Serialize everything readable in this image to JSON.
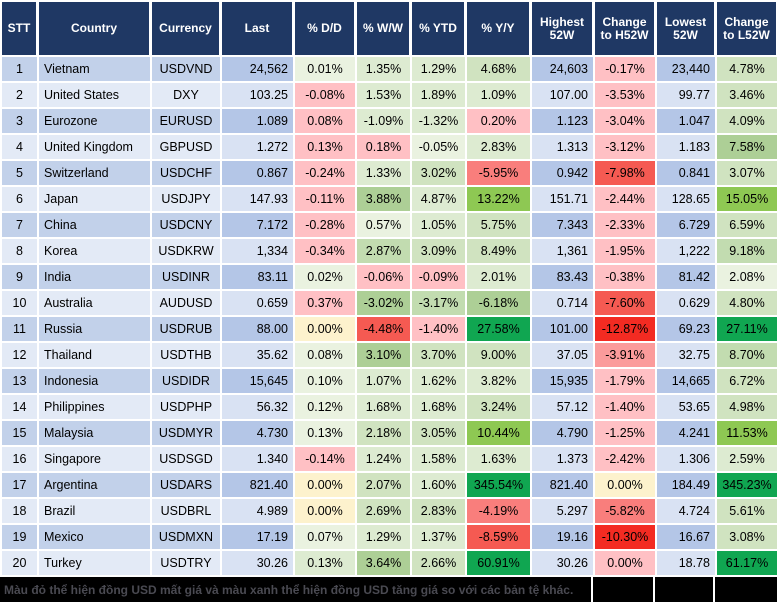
{
  "colors": {
    "header_bg": "#1f3864",
    "header_text": "#ffffff",
    "left_dark": "#c2d1ea",
    "left_light": "#e3eaf6",
    "num_dark": "#b4c6e7",
    "num_light": "#d9e2f3",
    "footer_bg": "#000000",
    "footer_text": "#4a4a52",
    "scale": {
      "G0": "#eaf2e0",
      "G1": "#ddebd1",
      "G2": "#d0e3c0",
      "G3": "#c2dcb0",
      "G4": "#adcf96",
      "G5": "#8ec853",
      "G6": "#10a651",
      "R1": "#ffc0c4",
      "R2": "#fb9b9b",
      "R3": "#f97e7c",
      "R4": "#f55a52",
      "R5": "#f32b22",
      "Y0": "#fdf2cd"
    }
  },
  "footer": {
    "note": "Màu đỏ thể hiện đồng USD mất giá và màu xanh thể hiện đồng USD tăng giá so với các bản tệ khác."
  },
  "chart_data": {
    "type": "table",
    "columns": [
      "STT",
      "Country",
      "Currency",
      "Last",
      "% D/D",
      "% W/W",
      "% YTD",
      "% Y/Y",
      "Highest 52W",
      "Change to H52W",
      "Lowest 52W",
      "Change to L52W"
    ],
    "rows": [
      [
        "1",
        "Vietnam",
        "USDVND",
        "24,562",
        [
          "0.01%",
          "G0"
        ],
        [
          "1.35%",
          "G1"
        ],
        [
          "1.29%",
          "G1"
        ],
        [
          "4.68%",
          "G2"
        ],
        "24,603",
        [
          "-0.17%",
          "R1"
        ],
        "23,440",
        [
          "4.78%",
          "G2"
        ]
      ],
      [
        "2",
        "United States",
        "DXY",
        "103.25",
        [
          "-0.08%",
          "R1"
        ],
        [
          "1.53%",
          "G1"
        ],
        [
          "1.89%",
          "G1"
        ],
        [
          "1.09%",
          "G1"
        ],
        "107.00",
        [
          "-3.53%",
          "R1"
        ],
        "99.77",
        [
          "3.46%",
          "G2"
        ]
      ],
      [
        "3",
        "Eurozone",
        "EURUSD",
        "1.089",
        [
          "0.08%",
          "R1"
        ],
        [
          "-1.09%",
          "G1"
        ],
        [
          "-1.32%",
          "G1"
        ],
        [
          "0.20%",
          "R1"
        ],
        "1.123",
        [
          "-3.04%",
          "R1"
        ],
        "1.047",
        [
          "4.09%",
          "G2"
        ]
      ],
      [
        "4",
        "United Kingdom",
        "GBPUSD",
        "1.272",
        [
          "0.13%",
          "R1"
        ],
        [
          "0.18%",
          "R1"
        ],
        [
          "-0.05%",
          "G0"
        ],
        [
          "2.83%",
          "G1"
        ],
        "1.313",
        [
          "-3.12%",
          "R1"
        ],
        "1.183",
        [
          "7.58%",
          "G4"
        ]
      ],
      [
        "5",
        "Switzerland",
        "USDCHF",
        "0.867",
        [
          "-0.24%",
          "R1"
        ],
        [
          "1.33%",
          "G1"
        ],
        [
          "3.02%",
          "G2"
        ],
        [
          "-5.95%",
          "R3"
        ],
        "0.942",
        [
          "-7.98%",
          "R4"
        ],
        "0.841",
        [
          "3.07%",
          "G2"
        ]
      ],
      [
        "6",
        "Japan",
        "USDJPY",
        "147.93",
        [
          "-0.11%",
          "R1"
        ],
        [
          "3.88%",
          "G4"
        ],
        [
          "4.87%",
          "G1"
        ],
        [
          "13.22%",
          "G5"
        ],
        "151.71",
        [
          "-2.44%",
          "R1"
        ],
        "128.65",
        [
          "15.05%",
          "G5"
        ]
      ],
      [
        "7",
        "China",
        "USDCNY",
        "7.172",
        [
          "-0.28%",
          "R1"
        ],
        [
          "0.57%",
          "G0"
        ],
        [
          "1.05%",
          "G1"
        ],
        [
          "5.75%",
          "G2"
        ],
        "7.343",
        [
          "-2.33%",
          "R1"
        ],
        "6.729",
        [
          "6.59%",
          "G2"
        ]
      ],
      [
        "8",
        "Korea",
        "USDKRW",
        "1,334",
        [
          "-0.34%",
          "R1"
        ],
        [
          "2.87%",
          "G3"
        ],
        [
          "3.09%",
          "G2"
        ],
        [
          "8.49%",
          "G2"
        ],
        "1,361",
        [
          "-1.95%",
          "R1"
        ],
        "1,222",
        [
          "9.18%",
          "G3"
        ]
      ],
      [
        "9",
        "India",
        "USDINR",
        "83.11",
        [
          "0.02%",
          "G0"
        ],
        [
          "-0.06%",
          "R1"
        ],
        [
          "-0.09%",
          "R1"
        ],
        [
          "2.01%",
          "G1"
        ],
        "83.43",
        [
          "-0.38%",
          "R1"
        ],
        "81.42",
        [
          "2.08%",
          "G0"
        ]
      ],
      [
        "10",
        "Australia",
        "AUDUSD",
        "0.659",
        [
          "0.37%",
          "R1"
        ],
        [
          "-3.02%",
          "G4"
        ],
        [
          "-3.17%",
          "G3"
        ],
        [
          "-6.18%",
          "G4"
        ],
        "0.714",
        [
          "-7.60%",
          "R4"
        ],
        "0.629",
        [
          "4.80%",
          "G2"
        ]
      ],
      [
        "11",
        "Russia",
        "USDRUB",
        "88.00",
        [
          "0.00%",
          "Y0"
        ],
        [
          "-4.48%",
          "R4"
        ],
        [
          "-1.40%",
          "R1"
        ],
        [
          "27.58%",
          "G6"
        ],
        "101.00",
        [
          "-12.87%",
          "R5"
        ],
        "69.23",
        [
          "27.11%",
          "G6"
        ]
      ],
      [
        "12",
        "Thailand",
        "USDTHB",
        "35.62",
        [
          "0.08%",
          "G0"
        ],
        [
          "3.10%",
          "G4"
        ],
        [
          "3.70%",
          "G2"
        ],
        [
          "9.00%",
          "G2"
        ],
        "37.05",
        [
          "-3.91%",
          "R2"
        ],
        "32.75",
        [
          "8.70%",
          "G3"
        ]
      ],
      [
        "13",
        "Indonesia",
        "USDIDR",
        "15,645",
        [
          "0.10%",
          "G0"
        ],
        [
          "1.07%",
          "G1"
        ],
        [
          "1.62%",
          "G1"
        ],
        [
          "3.82%",
          "G1"
        ],
        "15,935",
        [
          "-1.79%",
          "R1"
        ],
        "14,665",
        [
          "6.72%",
          "G2"
        ]
      ],
      [
        "14",
        "Philippines",
        "USDPHP",
        "56.32",
        [
          "0.12%",
          "G0"
        ],
        [
          "1.68%",
          "G1"
        ],
        [
          "1.68%",
          "G1"
        ],
        [
          "3.24%",
          "G2"
        ],
        "57.12",
        [
          "-1.40%",
          "R1"
        ],
        "53.65",
        [
          "4.98%",
          "G2"
        ]
      ],
      [
        "15",
        "Malaysia",
        "USDMYR",
        "4.730",
        [
          "0.13%",
          "G0"
        ],
        [
          "2.18%",
          "G2"
        ],
        [
          "3.05%",
          "G2"
        ],
        [
          "10.44%",
          "G5"
        ],
        "4.790",
        [
          "-1.25%",
          "R1"
        ],
        "4.241",
        [
          "11.53%",
          "G5"
        ]
      ],
      [
        "16",
        "Singapore",
        "USDSGD",
        "1.340",
        [
          "-0.14%",
          "R1"
        ],
        [
          "1.24%",
          "G1"
        ],
        [
          "1.58%",
          "G1"
        ],
        [
          "1.63%",
          "G1"
        ],
        "1.373",
        [
          "-2.42%",
          "R1"
        ],
        "1.306",
        [
          "2.59%",
          "G1"
        ]
      ],
      [
        "17",
        "Argentina",
        "USDARS",
        "821.40",
        [
          "0.00%",
          "Y0"
        ],
        [
          "2.07%",
          "G2"
        ],
        [
          "1.60%",
          "G1"
        ],
        [
          "345.54%",
          "G6"
        ],
        "821.40",
        [
          "0.00%",
          "Y0"
        ],
        "184.49",
        [
          "345.23%",
          "G6"
        ]
      ],
      [
        "18",
        "Brazil",
        "USDBRL",
        "4.989",
        [
          "0.00%",
          "Y0"
        ],
        [
          "2.69%",
          "G2"
        ],
        [
          "2.83%",
          "G2"
        ],
        [
          "-4.19%",
          "R3"
        ],
        "5.297",
        [
          "-5.82%",
          "R3"
        ],
        "4.724",
        [
          "5.61%",
          "G2"
        ]
      ],
      [
        "19",
        "Mexico",
        "USDMXN",
        "17.19",
        [
          "0.07%",
          "G0"
        ],
        [
          "1.29%",
          "G1"
        ],
        [
          "1.37%",
          "G1"
        ],
        [
          "-8.59%",
          "R4"
        ],
        "19.16",
        [
          "-10.30%",
          "R5"
        ],
        "16.67",
        [
          "3.08%",
          "G2"
        ]
      ],
      [
        "20",
        "Turkey",
        "USDTRY",
        "30.26",
        [
          "0.13%",
          "G1"
        ],
        [
          "3.64%",
          "G4"
        ],
        [
          "2.66%",
          "G2"
        ],
        [
          "60.91%",
          "G6"
        ],
        "30.26",
        [
          "0.00%",
          "R1"
        ],
        "18.78",
        [
          "61.17%",
          "G6"
        ]
      ]
    ]
  }
}
